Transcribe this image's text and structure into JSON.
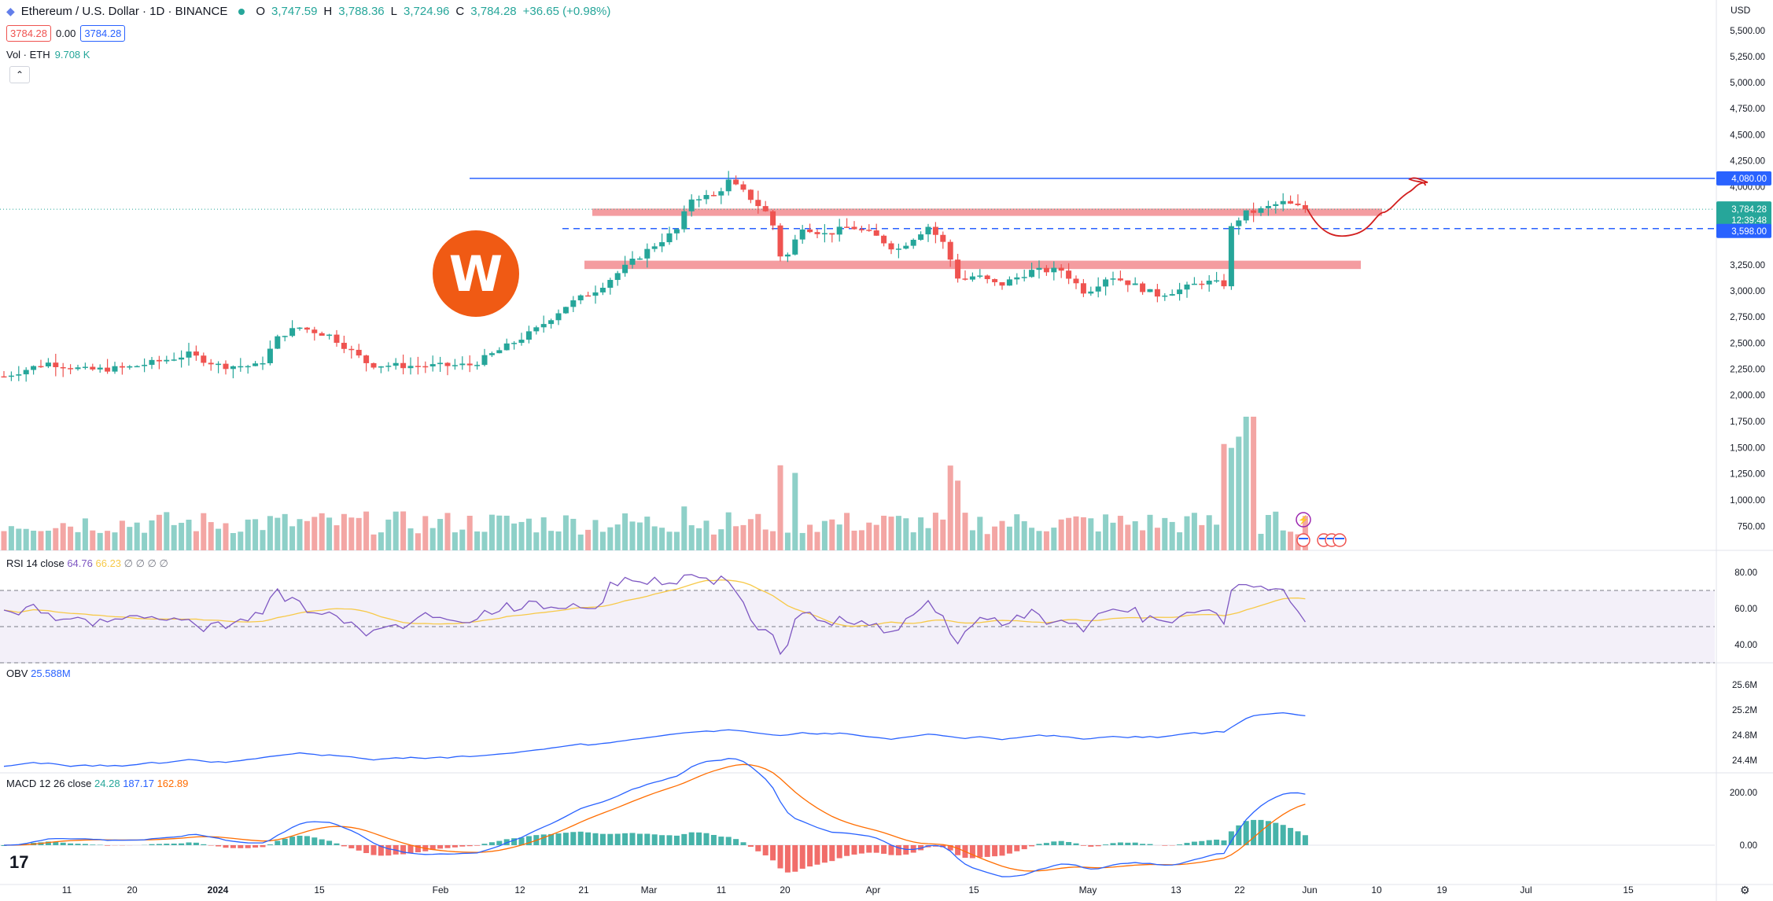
{
  "header": {
    "symbol": "Ethereum / U.S. Dollar · 1D · BINANCE",
    "open_label": "O",
    "open": "3,747.59",
    "high_label": "H",
    "high": "3,788.36",
    "low_label": "L",
    "low": "3,724.96",
    "close_label": "C",
    "close": "3,784.28",
    "change": "+36.65 (+0.98%)"
  },
  "quotes": {
    "sell": "3784.28",
    "spread": "0.00",
    "buy": "3784.28"
  },
  "volume_label": {
    "name": "Vol · ETH",
    "value": "9.708 K"
  },
  "collapse_icon": "chevron-up-icon",
  "currency": "USD",
  "price_axis": {
    "ticks": [
      "5,500.00",
      "5,250.00",
      "5,000.00",
      "4,750.00",
      "4,500.00",
      "4,250.00",
      "4,000.00",
      "3,250.00",
      "3,000.00",
      "2,750.00",
      "2,500.00",
      "2,250.00",
      "2,000.00",
      "1,750.00",
      "1,500.00",
      "1,250.00",
      "1,000.00",
      "750.00"
    ],
    "tags": {
      "resistance": "4,080.00",
      "last": "3,784.28",
      "countdown": "12:39:48",
      "support": "3,598.00"
    }
  },
  "rsi": {
    "name": "RSI 14 close",
    "v1": "64.76",
    "v2": "66.23",
    "rest": "∅ ∅ ∅ ∅",
    "ticks": [
      "80.00",
      "60.00",
      "40.00"
    ]
  },
  "obv": {
    "name": "OBV",
    "value": "25.588M",
    "ticks": [
      "25.6M",
      "25.2M",
      "24.8M",
      "24.4M"
    ]
  },
  "macd": {
    "name": "MACD 12 26 close",
    "hist": "24.28",
    "macd": "187.17",
    "signal": "162.89",
    "ticks": [
      "200.00",
      "0.00"
    ]
  },
  "time_axis": [
    "11",
    "20",
    "2024",
    "15",
    "Feb",
    "12",
    "21",
    "Mar",
    "11",
    "20",
    "Apr",
    "15",
    "May",
    "13",
    "22",
    "Jun",
    "10",
    "19",
    "Jul",
    "15"
  ],
  "colors": {
    "up": "#26a69a",
    "down": "#ef5350",
    "hline": "#2962ff",
    "zone": "#f28b8f",
    "logo": "#f05a14"
  },
  "icons": [
    "tradingview-logo-icon",
    "settings-gear-icon",
    "lightning-icon",
    "us-flag-icon"
  ],
  "chart_data": {
    "type": "candlestick",
    "xlabel": "",
    "ylabel": "",
    "ylim": [
      600,
      5600
    ],
    "key_levels": [
      4080,
      3598
    ],
    "zones": [
      [
        3720,
        3790
      ],
      [
        3210,
        3290
      ]
    ],
    "last_price": 3784.28
  }
}
